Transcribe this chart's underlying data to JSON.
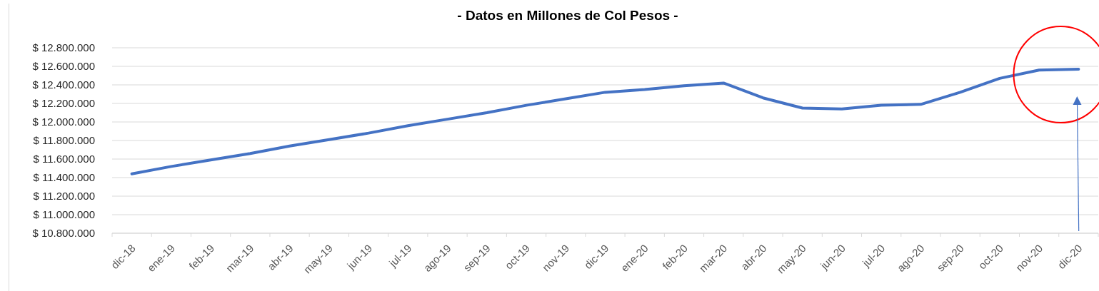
{
  "chart_data": {
    "type": "line",
    "title": "- Datos en Millones de Col Pesos -",
    "categories": [
      "dic-18",
      "ene-19",
      "feb-19",
      "mar-19",
      "abr-19",
      "may-19",
      "jun-19",
      "jul-19",
      "ago-19",
      "sep-19",
      "oct-19",
      "nov-19",
      "dic-19",
      "ene-20",
      "feb-20",
      "mar-20",
      "abr-20",
      "may-20",
      "jun-20",
      "jul-20",
      "ago-20",
      "sep-20",
      "oct-20",
      "nov-20",
      "dic-20"
    ],
    "values": [
      11440000,
      11520000,
      11590000,
      11660000,
      11740000,
      11810000,
      11880000,
      11960000,
      12030000,
      12100000,
      12180000,
      12250000,
      12320000,
      12350000,
      12390000,
      12420000,
      12260000,
      12150000,
      12140000,
      12180000,
      12190000,
      12320000,
      12470000,
      12560000,
      12570000
    ],
    "color": "#4472c4",
    "ylim": [
      10800000,
      12800000
    ],
    "yticks": [
      {
        "value": 10800000,
        "label": "$ 10.800.000"
      },
      {
        "value": 11000000,
        "label": "$ 11.000.000"
      },
      {
        "value": 11200000,
        "label": "$ 11.200.000"
      },
      {
        "value": 11400000,
        "label": "$ 11.400.000"
      },
      {
        "value": 11600000,
        "label": "$ 11.600.000"
      },
      {
        "value": 11800000,
        "label": "$ 11.800.000"
      },
      {
        "value": 12000000,
        "label": "$ 12.000.000"
      },
      {
        "value": 12200000,
        "label": "$ 12.200.000"
      },
      {
        "value": 12400000,
        "label": "$ 12.400.000"
      },
      {
        "value": 12600000,
        "label": "$ 12.600.000"
      },
      {
        "value": 12800000,
        "label": "$ 12.800.000"
      }
    ],
    "grid": "y"
  }
}
